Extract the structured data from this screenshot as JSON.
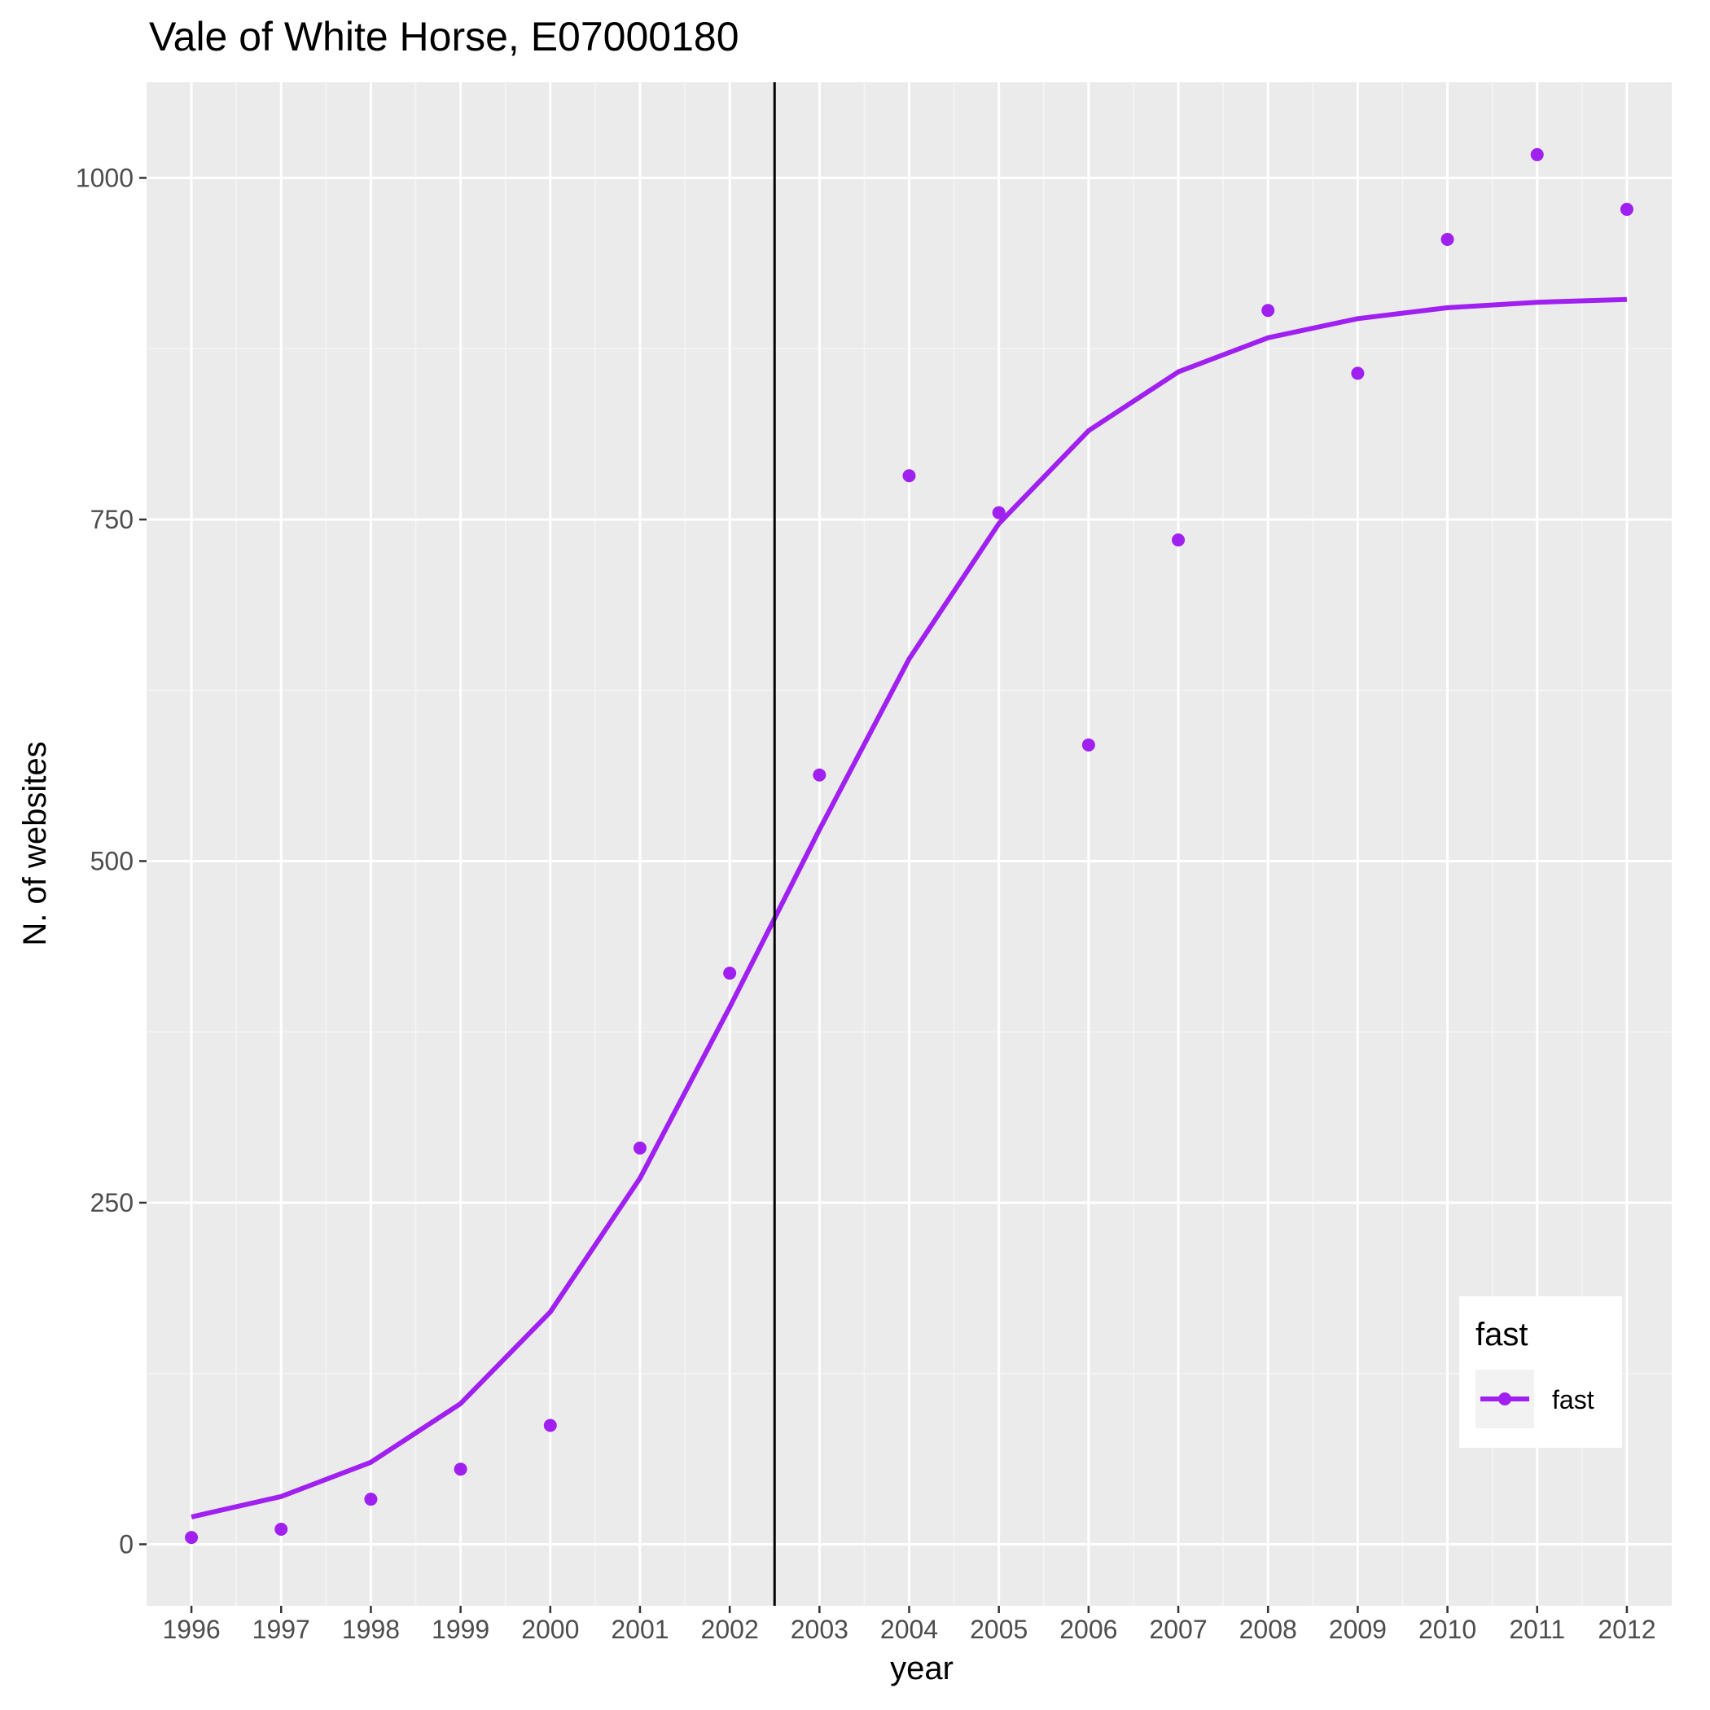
{
  "chart_data": {
    "type": "line",
    "title": "Vale of White Horse, E07000180",
    "xlabel": "year",
    "ylabel": "N. of websites",
    "x": [
      1996,
      1997,
      1998,
      1999,
      2000,
      2001,
      2002,
      2003,
      2004,
      2005,
      2006,
      2007,
      2008,
      2009,
      2010,
      2011,
      2012
    ],
    "x_tick_labels": [
      "1996",
      "1997",
      "1998",
      "1999",
      "2000",
      "2001",
      "2002",
      "2003",
      "2004",
      "2005",
      "2006",
      "2007",
      "2008",
      "2009",
      "2010",
      "2011",
      "2012"
    ],
    "y_ticks": [
      0,
      250,
      500,
      750,
      1000
    ],
    "y_tick_labels": [
      "0",
      "250",
      "500",
      "750",
      "1000"
    ],
    "xlim": [
      1995.5,
      2012.5
    ],
    "ylim": [
      -45,
      1070
    ],
    "grid": true,
    "vline_x": 2002.5,
    "series": [
      {
        "name": "fast",
        "kind": "points",
        "color": "#a020f0",
        "values": [
          5,
          11,
          33,
          55,
          87,
          290,
          418,
          563,
          782,
          755,
          585,
          735,
          903,
          857,
          955,
          1017,
          977
        ]
      },
      {
        "name": "fast",
        "kind": "line",
        "color": "#a020f0",
        "values": [
          20,
          35,
          60,
          103,
          170,
          268,
          393,
          523,
          648,
          747,
          815,
          858,
          883,
          897,
          905,
          909,
          911
        ]
      }
    ],
    "legend": {
      "title": "fast",
      "entries": [
        "fast"
      ],
      "position": "bottom-right"
    }
  }
}
